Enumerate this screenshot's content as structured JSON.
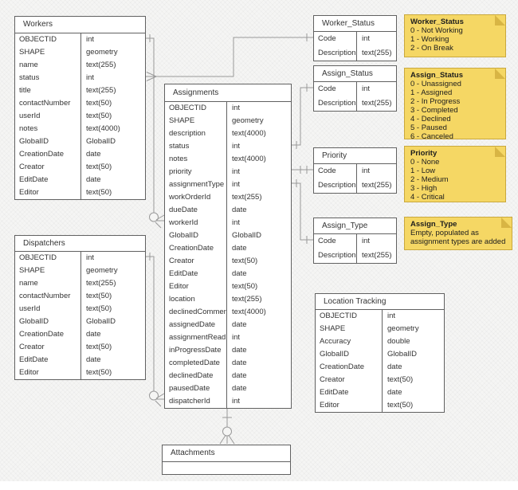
{
  "diagram": {
    "tables": [
      {
        "id": "workers",
        "title": "Workers",
        "fields": [
          {
            "name": "OBJECTID",
            "type": "int"
          },
          {
            "name": "SHAPE",
            "type": "geometry"
          },
          {
            "name": "name",
            "type": "text(255)"
          },
          {
            "name": "status",
            "type": "int"
          },
          {
            "name": "title",
            "type": "text(255)"
          },
          {
            "name": "contactNumber",
            "type": "text(50)"
          },
          {
            "name": "userId",
            "type": "text(50)"
          },
          {
            "name": "notes",
            "type": "text(4000)"
          },
          {
            "name": "GlobalID",
            "type": "GlobalID"
          },
          {
            "name": "CreationDate",
            "type": "date"
          },
          {
            "name": "Creator",
            "type": "text(50)"
          },
          {
            "name": "EditDate",
            "type": "date"
          },
          {
            "name": "Editor",
            "type": "text(50)"
          }
        ]
      },
      {
        "id": "dispatchers",
        "title": "Dispatchers",
        "fields": [
          {
            "name": "OBJECTID",
            "type": "int"
          },
          {
            "name": "SHAPE",
            "type": "geometry"
          },
          {
            "name": "name",
            "type": "text(255)"
          },
          {
            "name": "contactNumber",
            "type": "text(50)"
          },
          {
            "name": "userId",
            "type": "text(50)"
          },
          {
            "name": "GlobalID",
            "type": "GlobalID"
          },
          {
            "name": "CreationDate",
            "type": "date"
          },
          {
            "name": "Creator",
            "type": "text(50)"
          },
          {
            "name": "EditDate",
            "type": "date"
          },
          {
            "name": "Editor",
            "type": "text(50)"
          }
        ]
      },
      {
        "id": "assignments",
        "title": "Assignments",
        "fields": [
          {
            "name": "OBJECTID",
            "type": "int"
          },
          {
            "name": "SHAPE",
            "type": "geometry"
          },
          {
            "name": "description",
            "type": "text(4000)"
          },
          {
            "name": "status",
            "type": "int"
          },
          {
            "name": "notes",
            "type": "text(4000)"
          },
          {
            "name": "priority",
            "type": "int"
          },
          {
            "name": "assignmentType",
            "type": "int"
          },
          {
            "name": "workOrderId",
            "type": "text(255)"
          },
          {
            "name": "dueDate",
            "type": "date"
          },
          {
            "name": "workerId",
            "type": "int"
          },
          {
            "name": "GlobalID",
            "type": "GlobalID"
          },
          {
            "name": "CreationDate",
            "type": "date"
          },
          {
            "name": "Creator",
            "type": "text(50)"
          },
          {
            "name": "EditDate",
            "type": "date"
          },
          {
            "name": "Editor",
            "type": "text(50)"
          },
          {
            "name": "location",
            "type": "text(255)"
          },
          {
            "name": "declinedComment",
            "type": "text(4000)"
          },
          {
            "name": "assignedDate",
            "type": "date"
          },
          {
            "name": "assignmentRead",
            "type": "int"
          },
          {
            "name": "inProgressDate",
            "type": "date"
          },
          {
            "name": "completedDate",
            "type": "date"
          },
          {
            "name": "declinedDate",
            "type": "date"
          },
          {
            "name": "pausedDate",
            "type": "date"
          },
          {
            "name": "dispatcherId",
            "type": "int"
          }
        ]
      },
      {
        "id": "worker_status",
        "title": "Worker_Status",
        "fields": [
          {
            "name": "Code",
            "type": "int"
          },
          {
            "name": "Description",
            "type": "text(255)"
          }
        ]
      },
      {
        "id": "assign_status",
        "title": "Assign_Status",
        "fields": [
          {
            "name": "Code",
            "type": "int"
          },
          {
            "name": "Description",
            "type": "text(255)"
          }
        ]
      },
      {
        "id": "priority",
        "title": "Priority",
        "fields": [
          {
            "name": "Code",
            "type": "int"
          },
          {
            "name": "Description",
            "type": "text(255)"
          }
        ]
      },
      {
        "id": "assign_type",
        "title": "Assign_Type",
        "fields": [
          {
            "name": "Code",
            "type": "int"
          },
          {
            "name": "Description",
            "type": "text(255)"
          }
        ]
      },
      {
        "id": "location_tracking",
        "title": "Location Tracking",
        "fields": [
          {
            "name": "OBJECTID",
            "type": "int"
          },
          {
            "name": "SHAPE",
            "type": "geometry"
          },
          {
            "name": "Accuracy",
            "type": "double"
          },
          {
            "name": "GlobalID",
            "type": "GlobalID"
          },
          {
            "name": "CreationDate",
            "type": "date"
          },
          {
            "name": "Creator",
            "type": "text(50)"
          },
          {
            "name": "EditDate",
            "type": "date"
          },
          {
            "name": "Editor",
            "type": "text(50)"
          }
        ]
      },
      {
        "id": "attachments",
        "title": "Attachments",
        "fields": []
      }
    ],
    "notes": [
      {
        "id": "note_worker_status",
        "title": "Worker_Status",
        "lines": [
          "0 - Not Working",
          "1 - Working",
          "2 - On Break"
        ]
      },
      {
        "id": "note_assign_status",
        "title": "Assign_Status",
        "lines": [
          "0 - Unassigned",
          "1 - Assigned",
          "2 - In Progress",
          "3 - Completed",
          "4 - Declined",
          "5 - Paused",
          "6 - Canceled"
        ]
      },
      {
        "id": "note_priority",
        "title": "Priority",
        "lines": [
          "0 - None",
          "1 - Low",
          "2 - Medium",
          "3 - High",
          "4 - Critical"
        ]
      },
      {
        "id": "note_assign_type",
        "title": "Assign_Type",
        "lines": [
          "Empty, populated as",
          "assignment types are added"
        ]
      }
    ],
    "colors": {
      "note_fill": "#F5D764",
      "note_border": "#C9A83E",
      "note_fold": "#D8B544",
      "table_fill": "#FFFFFF",
      "table_border": "#616161",
      "connector": "#999999",
      "background": "#F5F5F4"
    }
  }
}
